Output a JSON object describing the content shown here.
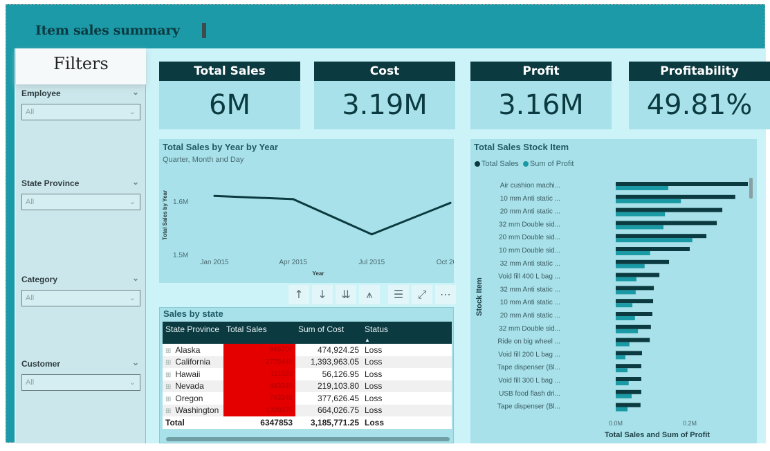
{
  "header": {
    "title": "Item sales summary"
  },
  "filters": {
    "title": "Filters",
    "slicers": [
      {
        "label": "Employee",
        "value": "All"
      },
      {
        "label": "State Province",
        "value": "All"
      },
      {
        "label": "Category",
        "value": "All"
      },
      {
        "label": "Customer",
        "value": "All"
      }
    ]
  },
  "kpis": [
    {
      "label": "Total Sales",
      "value": "6M"
    },
    {
      "label": "Cost",
      "value": "3.19M"
    },
    {
      "label": "Profit",
      "value": "3.16M"
    },
    {
      "label": "Profitability",
      "value": "49.81%"
    }
  ],
  "visual_toolbar": {
    "icons": [
      "arrow-up-icon",
      "arrow-down-icon",
      "expand-all-down-icon",
      "drill-down-icon",
      "filter-icon",
      "focus-mode-icon",
      "more-options-icon"
    ],
    "glyphs": [
      "↑",
      "↓",
      "⇊",
      "⩚",
      "☰",
      "⤢",
      "⋯"
    ]
  },
  "table": {
    "title": "Sales by state",
    "columns": [
      "State Province",
      "Total Sales",
      "Sum of Cost",
      "Status"
    ],
    "rows": [
      {
        "state": "Alaska",
        "sales": "946707",
        "cost": "474,924.25",
        "status": "Loss"
      },
      {
        "state": "California",
        "sales": "2775449",
        "cost": "1,393,963.05",
        "status": "Loss"
      },
      {
        "state": "Hawaii",
        "sales": "111923",
        "cost": "56,126.95",
        "status": "Loss"
      },
      {
        "state": "Nevada",
        "sales": "443349",
        "cost": "219,103.80",
        "status": "Loss"
      },
      {
        "state": "Oregon",
        "sales": "743348",
        "cost": "377,626.45",
        "status": "Loss"
      },
      {
        "state": "Washington",
        "sales": "1328075",
        "cost": "664,026.75",
        "status": "Loss"
      }
    ],
    "total": {
      "label": "Total",
      "sales": "6347853",
      "cost": "3,185,771.25",
      "status": "Loss"
    },
    "colors": {
      "header_bg": "#0b3a40",
      "sales_bg": "#e50000"
    }
  },
  "chart_data": [
    {
      "type": "line",
      "title": "Total Sales by Year by Year",
      "subtitle": "Quarter, Month and Day",
      "xlabel": "Year",
      "ylabel": "Total Sales by Year",
      "categories": [
        "Jan 2015",
        "Apr 2015",
        "Jul 2015",
        "Oct 2015"
      ],
      "values": [
        1610000,
        1604000,
        1538000,
        1597000
      ],
      "ylim": [
        1500000,
        1620000
      ],
      "yticks": [
        {
          "v": 1500000,
          "label": "1.5M"
        },
        {
          "v": 1600000,
          "label": "1.6M"
        }
      ],
      "color": "#0b3a40",
      "grid": false
    },
    {
      "type": "bar",
      "orientation": "horizontal",
      "title": "Total Sales Stock Item",
      "xlabel": "Total Sales and Sum of Profit",
      "ylabel": "Stock Item",
      "legend_position": "top-left",
      "xlim": [
        0,
        400000
      ],
      "xticks": [
        {
          "v": 0,
          "label": "0.0M"
        },
        {
          "v": 200000,
          "label": "0.2M"
        },
        {
          "v": 400000,
          "label": "0.4M"
        }
      ],
      "categories": [
        "Air cushion machi...",
        "10 mm Anti static ...",
        "20 mm Anti static ...",
        "32 mm Double sid...",
        "20 mm Double sid...",
        "10 mm Double sid...",
        "32 mm Anti static ...",
        "Void fill 400 L bag ...",
        "32 mm Anti static ...",
        "10 mm Anti static ...",
        "20 mm Anti static ...",
        "32 mm Double sid...",
        "Ride on big wheel ...",
        "Void fill 200 L bag ...",
        "Tape dispenser (Bl...",
        "Void fill 300 L bag ...",
        "USB food flash dri...",
        "Tape dispenser (Bl..."
      ],
      "series": [
        {
          "name": "Total Sales",
          "color": "#0b3a40",
          "values": [
            357000,
            323000,
            288000,
            273000,
            245000,
            200000,
            144000,
            118000,
            103000,
            101000,
            99000,
            95000,
            92000,
            71000,
            69000,
            69000,
            69000,
            67000
          ]
        },
        {
          "name": "Sum of Profit",
          "color": "#1a9aa5",
          "values": [
            142000,
            176000,
            133000,
            129000,
            207000,
            93000,
            78000,
            56000,
            54000,
            45000,
            52000,
            60000,
            37000,
            26000,
            32000,
            35000,
            43000,
            32000
          ]
        }
      ]
    }
  ]
}
